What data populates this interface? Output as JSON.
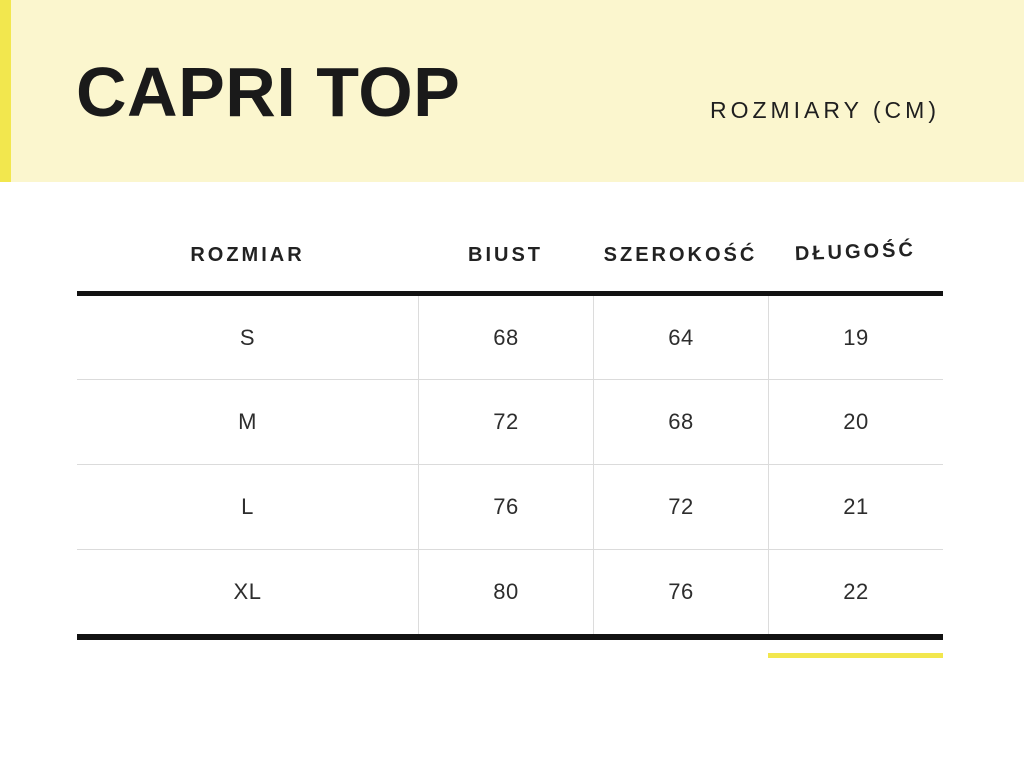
{
  "page": {
    "background_color": "#FFFFFF"
  },
  "header": {
    "title": "CAPRI TOP",
    "subtitle": "ROZMIARY (CM)",
    "band_color": "#FBF6CE",
    "accent_bar_color": "#F2E74E",
    "text_color": "#1A1A1A"
  },
  "table": {
    "columns": [
      "ROZMIAR",
      "BIUST",
      "SZEROKOŚĆ",
      "DŁUGOŚĆ"
    ],
    "rows": [
      {
        "size": "S",
        "biust": "68",
        "szerokosc": "64",
        "dlugosc": "19"
      },
      {
        "size": "M",
        "biust": "72",
        "szerokosc": "68",
        "dlugosc": "20"
      },
      {
        "size": "L",
        "biust": "76",
        "szerokosc": "72",
        "dlugosc": "21"
      },
      {
        "size": "XL",
        "biust": "80",
        "szerokosc": "76",
        "dlugosc": "22"
      }
    ],
    "thick_line_color": "#121212",
    "grid_line_color": "#DCDCDC",
    "accent_underline_color": "#F2E74E"
  }
}
